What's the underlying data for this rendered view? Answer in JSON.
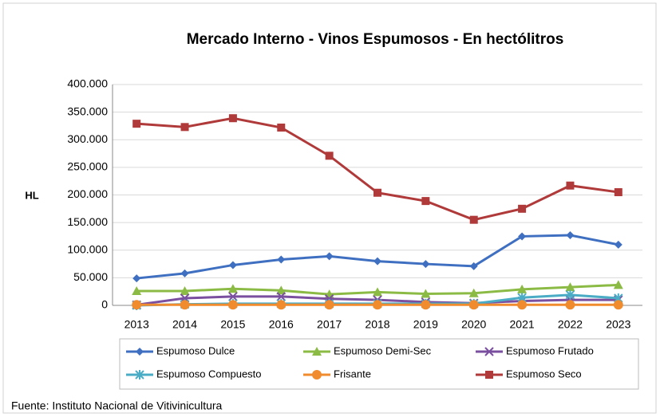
{
  "chart_data": {
    "type": "line",
    "title": "Mercado Interno - Vinos Espumosos - En hectólitros",
    "y_label": "HL",
    "source": "Fuente: Instituto Nacional de Vitivinicultura",
    "categories": [
      "2013",
      "2014",
      "2015",
      "2016",
      "2017",
      "2018",
      "2019",
      "2020",
      "2021",
      "2022",
      "2023"
    ],
    "ylim": [
      0,
      400000
    ],
    "yticks": [
      0,
      {
        "value": 50000,
        "label": "50.000"
      },
      {
        "value": 100000,
        "label": "100.000"
      },
      {
        "value": 150000,
        "label": "150.000"
      },
      {
        "value": 200000,
        "label": "200.000"
      },
      {
        "value": 250000,
        "label": "250.000"
      },
      {
        "value": 300000,
        "label": "300.000"
      },
      {
        "value": 350000,
        "label": "350.000"
      },
      {
        "value": 400000,
        "label": "400.000"
      }
    ],
    "grid": true,
    "legend": "bottom",
    "series": [
      {
        "name": "Espumoso Dulce",
        "color": "#3f6fc0",
        "marker": "diamond",
        "values": [
          49000,
          58000,
          73000,
          83000,
          89000,
          80000,
          75000,
          71000,
          125000,
          127000,
          110000
        ]
      },
      {
        "name": "Espumoso Demi-Sec",
        "color": "#8cbb45",
        "marker": "triangle",
        "values": [
          26000,
          26000,
          30000,
          27000,
          20000,
          24000,
          21000,
          22000,
          29000,
          33000,
          37000
        ]
      },
      {
        "name": "Espumoso Frutado",
        "color": "#7a4f9f",
        "marker": "x",
        "values": [
          1000,
          13000,
          16000,
          16000,
          12000,
          10000,
          6000,
          4000,
          8000,
          10000,
          10000
        ]
      },
      {
        "name": "Espumoso Compuesto",
        "color": "#4bacc6",
        "marker": "star",
        "values": [
          0,
          2000,
          3000,
          3000,
          3000,
          3000,
          3000,
          3000,
          14000,
          19000,
          13000
        ]
      },
      {
        "name": "Frisante",
        "color": "#f08c2e",
        "marker": "circle",
        "values": [
          1000,
          1000,
          1000,
          1000,
          1000,
          1000,
          1000,
          1000,
          1000,
          1000,
          1000
        ]
      },
      {
        "name": "Espumoso Seco",
        "color": "#b03a3a",
        "marker": "square",
        "values": [
          329000,
          323000,
          339000,
          322000,
          271000,
          204000,
          189000,
          155000,
          175000,
          217000,
          205000
        ]
      }
    ]
  }
}
